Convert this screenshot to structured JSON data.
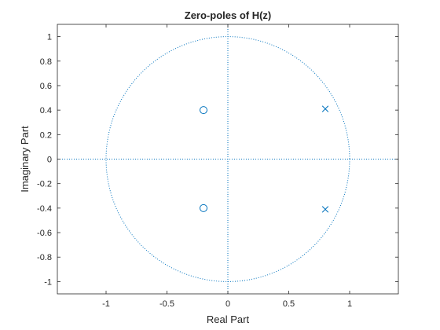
{
  "chart_data": {
    "type": "scatter",
    "title": "Zero-poles of H(z)",
    "xlabel": "Real Part",
    "ylabel": "Imaginary Part",
    "xlim": [
      -1.4,
      1.4
    ],
    "ylim": [
      -1.1,
      1.1
    ],
    "xticks": [
      -1,
      -0.5,
      0,
      0.5,
      1
    ],
    "xtick_labels": [
      "-1",
      "-0.5",
      "0",
      "0.5",
      "1"
    ],
    "yticks": [
      -1,
      -0.8,
      -0.6,
      -0.4,
      -0.2,
      0,
      0.2,
      0.4,
      0.6,
      0.8,
      1
    ],
    "ytick_labels": [
      "-1",
      "-0.8",
      "-0.6",
      "-0.4",
      "-0.2",
      "0",
      "0.2",
      "0.4",
      "0.6",
      "0.8",
      "1"
    ],
    "grid": false,
    "unit_circle": true,
    "zeros": [
      {
        "re": -0.2,
        "im": 0.4
      },
      {
        "re": -0.2,
        "im": -0.4
      }
    ],
    "poles": [
      {
        "re": 0.8,
        "im": 0.41
      },
      {
        "re": 0.8,
        "im": -0.41
      }
    ],
    "colors": {
      "marker": "#0072BD",
      "axes": "#262626"
    }
  }
}
